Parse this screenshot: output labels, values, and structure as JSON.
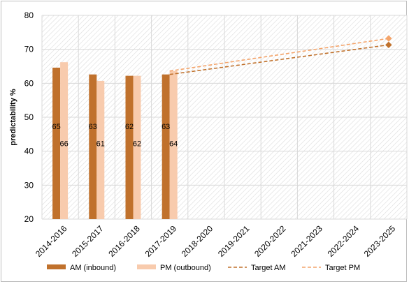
{
  "chart_data": {
    "type": "bar",
    "title": "",
    "xlabel": "",
    "ylabel": "predictability %",
    "ylim": [
      20,
      80
    ],
    "yticks": [
      20,
      30,
      40,
      50,
      60,
      70,
      80
    ],
    "grid": true,
    "legend_position": "bottom",
    "categories": [
      "2014-2016",
      "2015-2017",
      "2016-2018",
      "2017-2019",
      "2018-2020",
      "2019-2021",
      "2020-2022",
      "2021-2023",
      "2022-2024",
      "2023-2025"
    ],
    "series": [
      {
        "name": "AM (inbound)",
        "kind": "bar",
        "color": "#c0712c",
        "values": [
          64.6,
          62.6,
          62.2,
          62.6,
          null,
          null,
          null,
          null,
          null,
          null
        ],
        "labels": [
          "65",
          "63",
          "62",
          "63",
          null,
          null,
          null,
          null,
          null,
          null
        ]
      },
      {
        "name": "PM (outbound)",
        "kind": "bar",
        "color": "#f8cbad",
        "values": [
          66.2,
          60.7,
          62.2,
          63.6,
          null,
          null,
          null,
          null,
          null,
          null
        ],
        "labels": [
          "66",
          "61",
          "62",
          "64",
          null,
          null,
          null,
          null,
          null,
          null
        ]
      },
      {
        "name": "Target AM",
        "kind": "line",
        "dashed": true,
        "color": "#c0712c",
        "values": [
          null,
          null,
          null,
          62.6,
          null,
          null,
          null,
          null,
          null,
          71.3
        ]
      },
      {
        "name": "Target PM",
        "kind": "line",
        "dashed": true,
        "color": "#f4a46a",
        "values": [
          null,
          null,
          null,
          63.6,
          null,
          null,
          null,
          null,
          null,
          73.2
        ]
      }
    ]
  }
}
